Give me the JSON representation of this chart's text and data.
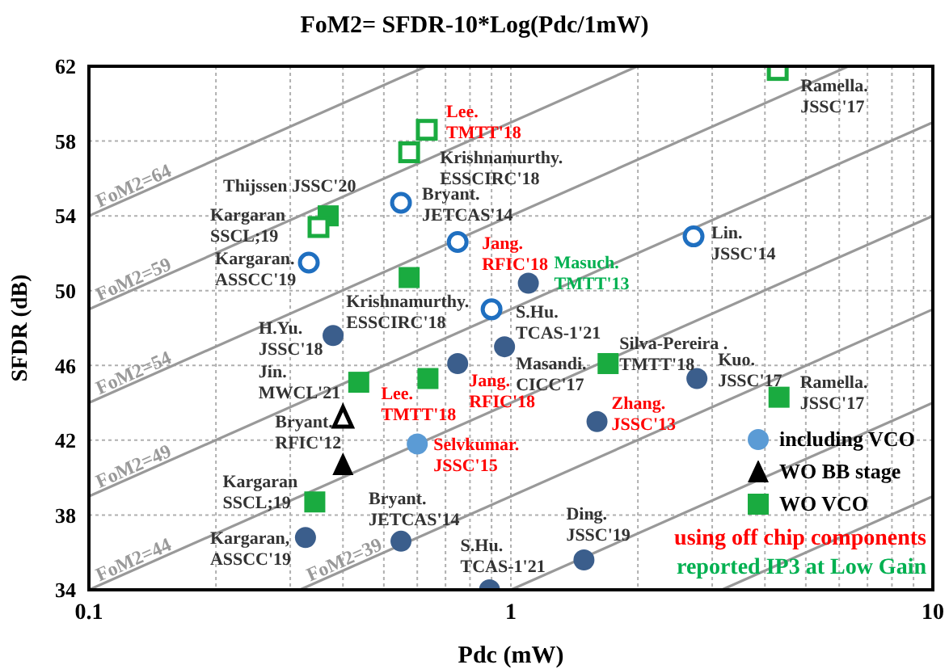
{
  "chart_data": {
    "type": "scatter",
    "title": "FoM2= SFDR-10*Log(Pdc/1mW)",
    "xlabel": "Pdc (mW)",
    "ylabel": "SFDR (dB)",
    "log": "x",
    "grid": true,
    "legend": "bottom right",
    "xlim": [
      0.1,
      10
    ],
    "xticks": [
      0.1,
      {
        "value": 0.2,
        "label": null
      },
      {
        "value": 0.3,
        "label": null
      },
      {
        "value": 0.4,
        "label": null
      },
      {
        "value": 0.5,
        "label": null
      },
      {
        "value": 0.6,
        "label": null
      },
      {
        "value": 0.7,
        "label": null
      },
      {
        "value": 0.8,
        "label": null
      },
      {
        "value": 0.9,
        "label": null
      },
      1,
      {
        "value": 2,
        "label": null
      },
      {
        "value": 3,
        "label": null
      },
      {
        "value": 4,
        "label": null
      },
      {
        "value": 5,
        "label": null
      },
      {
        "value": 6,
        "label": null
      },
      {
        "value": 7,
        "label": null
      },
      {
        "value": 8,
        "label": null
      },
      {
        "value": 9,
        "label": null
      },
      10
    ],
    "ylim": [
      34,
      62
    ],
    "yticks": [
      34,
      38,
      42,
      46,
      50,
      54,
      58,
      62
    ],
    "series": [
      {
        "type": "line",
        "name": "FoM2=64",
        "color": "#999999",
        "marker": "none",
        "x": [
          0.1,
          0.631
        ],
        "values": [
          54,
          62
        ]
      },
      {
        "type": "line",
        "name": "FoM2=59",
        "color": "#999999",
        "marker": "none",
        "x": [
          0.1,
          1.995
        ],
        "values": [
          49,
          62
        ]
      },
      {
        "type": "line",
        "name": "FoM2=54",
        "color": "#999999",
        "marker": "none",
        "x": [
          0.1,
          6.31
        ],
        "values": [
          44,
          62
        ]
      },
      {
        "type": "line",
        "name": "FoM2=49",
        "color": "#999999",
        "marker": "none",
        "x": [
          0.1,
          10
        ],
        "values": [
          39,
          59
        ]
      },
      {
        "type": "line",
        "name": "FoM2=44",
        "color": "#999999",
        "marker": "none",
        "x": [
          0.1,
          10
        ],
        "values": [
          34,
          54
        ]
      },
      {
        "type": "line",
        "name": "FoM2=39",
        "color": "#999999",
        "marker": "none",
        "x": [
          0.316,
          10
        ],
        "values": [
          34,
          49
        ]
      },
      {
        "type": "line",
        "color": "#999999",
        "marker": "none",
        "x": [
          1,
          10
        ],
        "values": [
          34,
          44
        ]
      },
      {
        "type": "line",
        "color": "#999999",
        "marker": "none",
        "x": [
          3.16,
          10
        ],
        "values": [
          34,
          39
        ]
      },
      {
        "name": "including VCO",
        "color": "#5b9bd5",
        "marker": "circle",
        "x": [
          0.6
        ],
        "values": [
          41.8
        ]
      },
      {
        "color": "#3b5e8c",
        "marker": "circle",
        "x": [
          0.379,
          0.748,
          0.966,
          1.1,
          2.76,
          1.6,
          1.49,
          0.89,
          0.326,
          0.549
        ],
        "values": [
          47.6,
          46.1,
          47.0,
          50.4,
          45.3,
          43.0,
          35.6,
          34.0,
          36.8,
          36.6
        ]
      },
      {
        "color": "#1f6fc0",
        "marker": "circle",
        "x": [
          0.549,
          0.332,
          0.748,
          0.9,
          2.71
        ],
        "values": [
          54.7,
          51.5,
          52.6,
          49.0,
          52.9
        ]
      },
      {
        "name": "WO BB stage",
        "color": "#000000",
        "marker": "triangle",
        "x": [
          0.4
        ],
        "values": [
          40.7
        ]
      },
      {
        "color": "#000000",
        "marker": "triangle",
        "x": [
          0.4
        ],
        "values": [
          43.2
        ]
      },
      {
        "name": "WO VCO",
        "color": "#1aab40",
        "marker": "square",
        "x": [
          0.369,
          0.574,
          0.436,
          0.636,
          1.7,
          4.32,
          0.343
        ],
        "values": [
          54.0,
          50.7,
          45.1,
          45.3,
          46.1,
          44.3,
          38.7
        ]
      },
      {
        "color": "#1aab40",
        "marker": "square",
        "x": [
          0.632,
          0.574,
          0.35,
          4.29
        ],
        "values": [
          58.6,
          57.4,
          53.4,
          61.8
        ]
      }
    ],
    "annotations": [
      {
        "text": "Lee.\nTMTT'18",
        "x": 0.632,
        "y": 58.6
      },
      {
        "text": "Krishnamurthy.\nESSCIRC'18",
        "x": 0.574,
        "y": 57.4
      },
      {
        "text": "Thijssen JSSC'20",
        "x": 0.369,
        "y": 54.0
      },
      {
        "text": "Kargaran\nSSCL;19",
        "x": 0.35,
        "y": 53.4
      },
      {
        "text": "Bryant.\nJETCAS'14",
        "x": 0.549,
        "y": 54.7
      },
      {
        "text": "Kargaran.\nASSCC'19",
        "x": 0.332,
        "y": 51.5
      },
      {
        "text": "Jang.\nRFIC'18",
        "x": 0.748,
        "y": 52.6
      },
      {
        "text": "Masuch.\nTMTT'13",
        "x": 1.1,
        "y": 50.4
      },
      {
        "text": "Lin.\nJSSC'14",
        "x": 2.71,
        "y": 52.9
      },
      {
        "text": "Krishnamurthy.\nESSCIRC'18",
        "x": 0.574,
        "y": 50.7
      },
      {
        "text": "S.Hu.\nTCAS-1'21",
        "x": 0.9,
        "y": 49.0
      },
      {
        "text": "H.Yu.\nJSSC'18",
        "x": 0.379,
        "y": 47.6
      },
      {
        "text": "Silva-Pereira .\nTMTT'18",
        "x": 1.7,
        "y": 46.1
      },
      {
        "text": "Jin.\nMWCL'21",
        "x": 0.436,
        "y": 45.1
      },
      {
        "text": "Masandi.\nCICC'17",
        "x": 0.966,
        "y": 47.0
      },
      {
        "text": "Kuo.\nJSSC'17",
        "x": 2.76,
        "y": 45.3
      },
      {
        "text": "Ramella.\nJSSC'17",
        "x": 4.32,
        "y": 44.3
      },
      {
        "text": "Ramella.\nJSSC'17",
        "x": 4.29,
        "y": 61.8
      },
      {
        "text": "Lee.\nTMTT'18",
        "x": 0.636,
        "y": 45.3
      },
      {
        "text": "Jang.\nRFIC'18",
        "x": 0.748,
        "y": 46.1
      },
      {
        "text": "Zhang.\nJSSC'13",
        "x": 1.6,
        "y": 43.0
      },
      {
        "text": "Bryant.\nRFIC'12",
        "x": 0.4,
        "y": 43.2
      },
      {
        "text": "Selvkumar.\nJSSC'15",
        "x": 0.6,
        "y": 41.8
      },
      {
        "text": "Kargaran\nSSCL;19",
        "x": 0.343,
        "y": 38.7
      },
      {
        "text": "Bryant.\nJETCAS'14",
        "x": 0.549,
        "y": 36.6
      },
      {
        "text": "Kargaran,\nASSCC'19",
        "x": 0.326,
        "y": 36.8
      },
      {
        "text": "S.Hu.\nTCAS-1'21",
        "x": 0.89,
        "y": 34.0
      },
      {
        "text": "Ding.\nJSSC'19",
        "x": 1.49,
        "y": 35.6
      },
      "using off chip components",
      "reported IP3 at Low Gain"
    ]
  }
}
